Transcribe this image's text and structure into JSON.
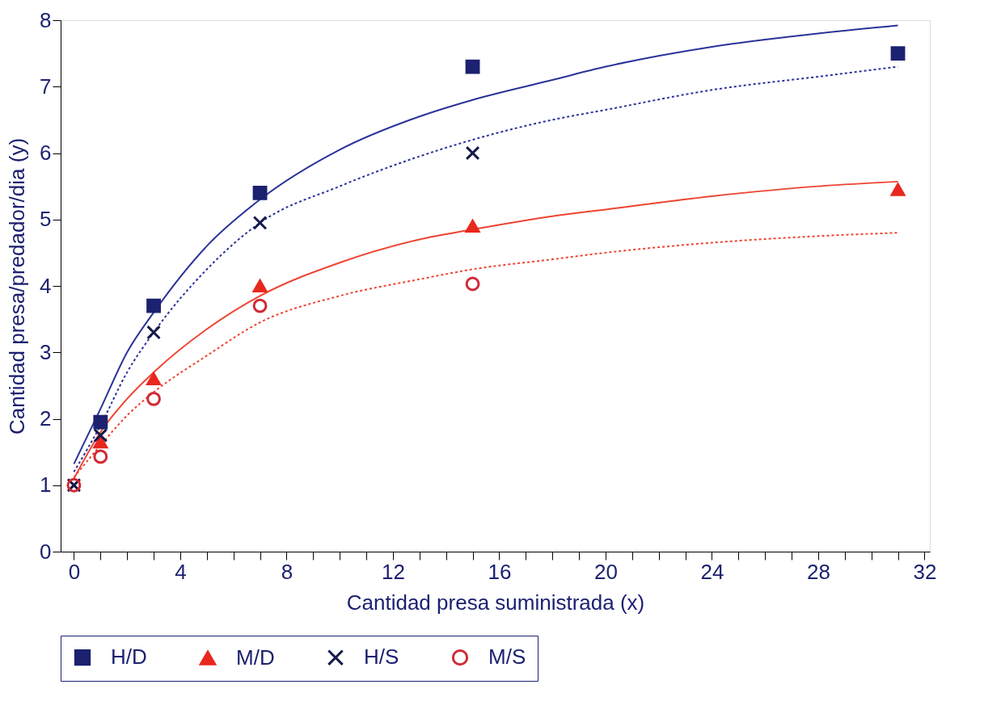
{
  "chart_data": {
    "type": "scatter",
    "xlabel": "Cantidad presa suministrada (x)",
    "ylabel": "Cantidad presa/predador/dia (y)",
    "xlim": [
      -0.5,
      32.2
    ],
    "ylim": [
      0,
      8
    ],
    "xticks": [
      0,
      {
        "value": 1,
        "label": null
      },
      {
        "value": 2,
        "label": null
      },
      {
        "value": 3,
        "label": null
      },
      4,
      {
        "value": 5,
        "label": null
      },
      {
        "value": 6,
        "label": null
      },
      {
        "value": 7,
        "label": null
      },
      8,
      {
        "value": 9,
        "label": null
      },
      {
        "value": 10,
        "label": null
      },
      {
        "value": 11,
        "label": null
      },
      12,
      {
        "value": 13,
        "label": null
      },
      {
        "value": 14,
        "label": null
      },
      {
        "value": 15,
        "label": null
      },
      16,
      {
        "value": 17,
        "label": null
      },
      {
        "value": 18,
        "label": null
      },
      {
        "value": 19,
        "label": null
      },
      20,
      {
        "value": 21,
        "label": null
      },
      {
        "value": 22,
        "label": null
      },
      {
        "value": 23,
        "label": null
      },
      24,
      {
        "value": 25,
        "label": null
      },
      {
        "value": 26,
        "label": null
      },
      {
        "value": 27,
        "label": null
      },
      28,
      {
        "value": 29,
        "label": null
      },
      {
        "value": 30,
        "label": null
      },
      {
        "value": 31,
        "label": null
      },
      32
    ],
    "yticks": [
      0,
      1,
      2,
      3,
      4,
      5,
      6,
      7,
      8
    ],
    "grid": false,
    "legend": "bottom",
    "series": [
      {
        "name": "H/D",
        "type": "scatter",
        "marker": "square",
        "color": "#1c2170",
        "x": [
          1,
          3,
          7,
          15,
          31
        ],
        "values": [
          1.95,
          3.7,
          5.4,
          7.3,
          7.5
        ]
      },
      {
        "name": "M/D",
        "type": "scatter",
        "marker": "triangle",
        "color": "#e8281e",
        "x": [
          1,
          3,
          7,
          15,
          31
        ],
        "values": [
          1.65,
          2.6,
          4.0,
          4.9,
          5.45
        ]
      },
      {
        "name": "H/S",
        "type": "scatter",
        "marker": "cross",
        "color": "#151a4a",
        "x": [
          0,
          1,
          3,
          7,
          15
        ],
        "values": [
          1,
          1.75,
          3.3,
          4.95,
          6.0
        ]
      },
      {
        "name": "M/S",
        "type": "scatter",
        "marker": "circle",
        "color": "#d02a35",
        "x": [
          0,
          1,
          3,
          7,
          15
        ],
        "values": [
          1,
          1.43,
          2.3,
          3.7,
          4.03
        ]
      },
      {
        "type": "line",
        "line_style": "solid",
        "color": "#2a3399",
        "x": [
          0,
          1,
          2,
          3,
          5,
          7,
          10,
          13,
          15,
          18,
          20,
          24,
          28,
          31
        ],
        "values": [
          1.32,
          2.15,
          3.0,
          3.6,
          4.6,
          5.3,
          6.05,
          6.55,
          6.8,
          7.1,
          7.3,
          7.6,
          7.8,
          7.92
        ]
      },
      {
        "type": "line",
        "line_style": "dotted",
        "color": "#2a3399",
        "x": [
          0,
          1,
          2,
          3,
          5,
          7,
          10,
          13,
          15,
          18,
          20,
          24,
          28,
          31
        ],
        "values": [
          1.2,
          1.9,
          2.7,
          3.3,
          4.25,
          4.95,
          5.5,
          5.95,
          6.2,
          6.5,
          6.65,
          6.95,
          7.15,
          7.3
        ]
      },
      {
        "type": "line",
        "line_style": "solid",
        "color": "#ee4433",
        "x": [
          0,
          1,
          2,
          3,
          5,
          7,
          10,
          13,
          15,
          18,
          20,
          24,
          28,
          31
        ],
        "values": [
          1.1,
          1.8,
          2.3,
          2.7,
          3.35,
          3.85,
          4.35,
          4.7,
          4.85,
          5.05,
          5.15,
          5.35,
          5.5,
          5.57
        ]
      },
      {
        "type": "line",
        "line_style": "dotted",
        "color": "#ee4433",
        "x": [
          0,
          1,
          2,
          3,
          5,
          7,
          10,
          13,
          15,
          18,
          20,
          24,
          28,
          31
        ],
        "values": [
          1.12,
          1.6,
          2.05,
          2.4,
          2.95,
          3.45,
          3.85,
          4.1,
          4.25,
          4.4,
          4.5,
          4.65,
          4.75,
          4.8
        ]
      }
    ]
  }
}
